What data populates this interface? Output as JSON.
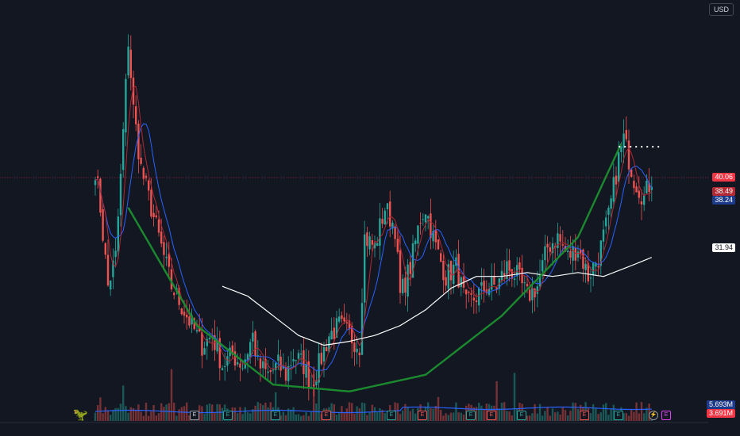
{
  "currency_button": "USD",
  "price_labels": [
    {
      "key": "last",
      "text": "40.06",
      "value": 40.06,
      "bg": "#f23645",
      "fg": "#ffffff"
    },
    {
      "key": "ma_fast",
      "text": "38.49",
      "value": 38.49,
      "bg": "#b22833",
      "fg": "#ffffff"
    },
    {
      "key": "ma_mid",
      "text": "38.24",
      "value": 38.24,
      "bg": "#1e3a8a",
      "fg": "#ffffff"
    },
    {
      "key": "ma_slow",
      "text": "31.94",
      "value": 31.94,
      "bg": "#ffffff",
      "fg": "#131722"
    }
  ],
  "volume_labels": [
    {
      "key": "vol_ma",
      "text": "5.693M",
      "bg": "#1e3a8a",
      "fg": "#ffffff"
    },
    {
      "key": "vol",
      "text": "3.691M",
      "bg": "#f23645",
      "fg": "#ffffff"
    }
  ],
  "events": [
    {
      "label": "E",
      "kind": "E"
    },
    {
      "label": "E",
      "kind": "green"
    },
    {
      "label": "E",
      "kind": "green"
    },
    {
      "label": "E",
      "kind": "red"
    },
    {
      "label": "E",
      "kind": "green"
    },
    {
      "label": "E",
      "kind": "red"
    },
    {
      "label": "E",
      "kind": "green"
    },
    {
      "label": "E",
      "kind": "red"
    },
    {
      "label": "E",
      "kind": "green"
    },
    {
      "label": "E",
      "kind": "red"
    },
    {
      "label": "E",
      "kind": "green"
    },
    {
      "label": "⚡",
      "kind": "flash"
    },
    {
      "label": "E",
      "kind": "pink"
    }
  ],
  "colors": {
    "background": "#131722",
    "up": "#26a69a",
    "down": "#ef5350",
    "ma_fast": "#b22833",
    "ma_mid": "#2962ff",
    "ma_slow": "#ffffff",
    "cup": "#1b8a2f",
    "resistance": "#ffffff",
    "last_price_line": "#f23645",
    "volume_ma": "#2962ff"
  },
  "chart_data": {
    "type": "candlestick",
    "title": "",
    "ylim": [
      16,
      56
    ],
    "last_price": 40.06,
    "resistance_level": 43.2,
    "close_path": [
      [
        0,
        41
      ],
      [
        2,
        37
      ],
      [
        5,
        29
      ],
      [
        8,
        32
      ],
      [
        10,
        40
      ],
      [
        13,
        54
      ],
      [
        15,
        47
      ],
      [
        18,
        41
      ],
      [
        22,
        37
      ],
      [
        26,
        33
      ],
      [
        30,
        29
      ],
      [
        34,
        27
      ],
      [
        38,
        25
      ],
      [
        42,
        23
      ],
      [
        46,
        24
      ],
      [
        50,
        21
      ],
      [
        54,
        22
      ],
      [
        58,
        21
      ],
      [
        62,
        24
      ],
      [
        64,
        21
      ],
      [
        68,
        20
      ],
      [
        72,
        21
      ],
      [
        75,
        20
      ],
      [
        78,
        22
      ],
      [
        82,
        21
      ],
      [
        85,
        19
      ],
      [
        88,
        21
      ],
      [
        92,
        24
      ],
      [
        96,
        25
      ],
      [
        100,
        24
      ],
      [
        104,
        23
      ],
      [
        106,
        34
      ],
      [
        110,
        33
      ],
      [
        114,
        37
      ],
      [
        118,
        35
      ],
      [
        120,
        28
      ],
      [
        124,
        31
      ],
      [
        128,
        36
      ],
      [
        130,
        37
      ],
      [
        134,
        33
      ],
      [
        138,
        30
      ],
      [
        142,
        31
      ],
      [
        146,
        27
      ],
      [
        150,
        28
      ],
      [
        154,
        29
      ],
      [
        158,
        29
      ],
      [
        162,
        31
      ],
      [
        166,
        30
      ],
      [
        170,
        28
      ],
      [
        174,
        29
      ],
      [
        178,
        33
      ],
      [
        182,
        34
      ],
      [
        186,
        32
      ],
      [
        190,
        33
      ],
      [
        194,
        30
      ],
      [
        198,
        32
      ],
      [
        202,
        36
      ],
      [
        206,
        42
      ],
      [
        208,
        44
      ],
      [
        212,
        40
      ],
      [
        216,
        38
      ],
      [
        219,
        40
      ]
    ],
    "cup_curve": [
      [
        13,
        37
      ],
      [
        40,
        25
      ],
      [
        70,
        19
      ],
      [
        100,
        18.3
      ],
      [
        130,
        20
      ],
      [
        160,
        26
      ],
      [
        190,
        34
      ],
      [
        207,
        43.5
      ]
    ],
    "ma_slow_path": [
      [
        50,
        29
      ],
      [
        60,
        28
      ],
      [
        70,
        26
      ],
      [
        80,
        24
      ],
      [
        90,
        23
      ],
      [
        100,
        23.4
      ],
      [
        110,
        24
      ],
      [
        120,
        25
      ],
      [
        130,
        26.6
      ],
      [
        140,
        28.8
      ],
      [
        150,
        30
      ],
      [
        160,
        30
      ],
      [
        170,
        30.4
      ],
      [
        180,
        30
      ],
      [
        190,
        30.4
      ],
      [
        200,
        30
      ],
      [
        210,
        31
      ],
      [
        219,
        31.94
      ]
    ],
    "volume": {
      "avg_m": 5.693,
      "last_m": 3.691
    }
  }
}
